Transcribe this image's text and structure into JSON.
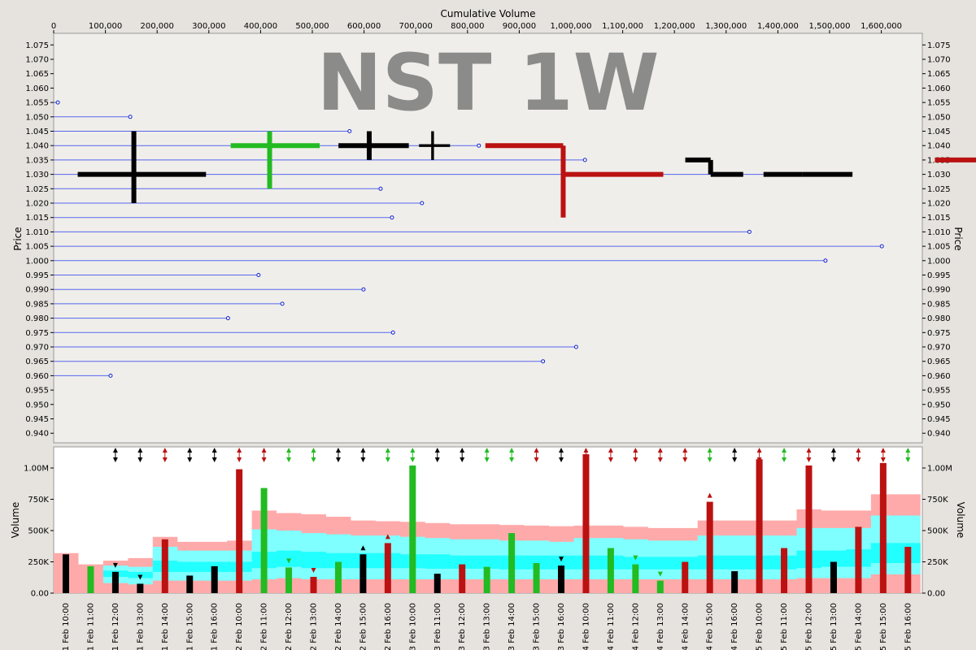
{
  "chart_data": {
    "type": "price-volume",
    "watermark": "NST 1W",
    "top_axis_label": "Cumulative Volume",
    "price_axis_label": "Price",
    "volume_axis_label": "Volume",
    "cum_volume_ticks": [
      "0",
      "100,000",
      "200,000",
      "300,000",
      "400,000",
      "500,000",
      "600,000",
      "700,000",
      "800,000",
      "900,000",
      "1,000,000",
      "1,100,000",
      "1,200,000",
      "1,300,000",
      "1,400,000",
      "1,500,000",
      "1,600,000"
    ],
    "price_ticks": [
      "1.075",
      "1.070",
      "1.065",
      "1.060",
      "1.055",
      "1.050",
      "1.045",
      "1.040",
      "1.035",
      "1.030",
      "1.025",
      "1.020",
      "1.015",
      "1.010",
      "1.005",
      "1.000",
      "0.995",
      "0.990",
      "0.985",
      "0.980",
      "0.975",
      "0.970",
      "0.965",
      "0.960",
      "0.955",
      "0.950",
      "0.945",
      "0.940"
    ],
    "volume_ticks": [
      "1.00M",
      "750K",
      "500K",
      "250K",
      "0.00"
    ],
    "colors": {
      "up": "#22bb22",
      "down": "#bb1111",
      "neutral": "#000000",
      "level": "#5566ee",
      "band_outer": "#ffaaaa",
      "band_mid": "#7fffff",
      "band_inner": "#22ffff"
    },
    "price_levels": [
      {
        "price": 1.055,
        "cum_end": 8000
      },
      {
        "price": 1.05,
        "cum_end": 148000
      },
      {
        "price": 1.045,
        "cum_end": 572000
      },
      {
        "price": 1.04,
        "cum_end": 822000
      },
      {
        "price": 1.035,
        "cum_end": 1027000
      },
      {
        "price": 1.03,
        "cum_end": 1423000
      },
      {
        "price": 1.025,
        "cum_end": 632000
      },
      {
        "price": 1.02,
        "cum_end": 712000
      },
      {
        "price": 1.015,
        "cum_end": 654000
      },
      {
        "price": 1.01,
        "cum_end": 1345000
      },
      {
        "price": 1.005,
        "cum_end": 1601000
      },
      {
        "price": 1.0,
        "cum_end": 1492000
      },
      {
        "price": 0.995,
        "cum_end": 396000
      },
      {
        "price": 0.99,
        "cum_end": 599000
      },
      {
        "price": 0.985,
        "cum_end": 442000
      },
      {
        "price": 0.98,
        "cum_end": 337000
      },
      {
        "price": 0.975,
        "cum_end": 656000
      },
      {
        "price": 0.97,
        "cum_end": 1010000
      },
      {
        "price": 0.965,
        "cum_end": 946000
      },
      {
        "price": 0.96,
        "cum_end": 110000
      }
    ],
    "bars": [
      {
        "time": "11 Feb 10:00",
        "volume": 310000,
        "open": 1.03,
        "high": 1.045,
        "low": 1.02,
        "close": 1.03,
        "dir": "neutral"
      },
      {
        "time": "11 Feb 11:00",
        "volume": 215000,
        "open": 1.04,
        "high": 1.045,
        "low": 1.025,
        "close": 1.04,
        "dir": "up"
      },
      {
        "time": "11 Feb 12:00",
        "volume": 170000,
        "open": 1.04,
        "high": 1.045,
        "low": 1.035,
        "close": 1.04,
        "dir": "neutral",
        "marker": "down"
      },
      {
        "time": "11 Feb 13:00",
        "volume": 75000,
        "open": 1.04,
        "high": 1.045,
        "low": 1.035,
        "close": 1.04,
        "dir": "neutral",
        "marker": "down"
      },
      {
        "time": "11 Feb 14:00",
        "volume": 430000,
        "open": 1.04,
        "high": 1.04,
        "low": 1.015,
        "close": 1.03,
        "dir": "down"
      },
      {
        "time": "11 Feb 15:00",
        "volume": 140000,
        "open": 1.035,
        "high": 1.035,
        "low": 1.03,
        "close": 1.03,
        "dir": "neutral"
      },
      {
        "time": "11 Feb 16:00",
        "volume": 215000,
        "open": 1.03,
        "high": 1.03,
        "low": 1.03,
        "close": 1.03,
        "dir": "neutral"
      },
      {
        "time": "12 Feb 10:00",
        "volume": 990000,
        "open": 1.035,
        "high": 1.035,
        "low": 0.995,
        "close": 0.995,
        "dir": "down"
      },
      {
        "time": "12 Feb 11:00",
        "volume": 840000,
        "open": 1.0,
        "high": 1.005,
        "low": 0.99,
        "close": 1.0,
        "dir": "up"
      },
      {
        "time": "12 Feb 12:00",
        "volume": 205000,
        "open": 1.005,
        "high": 1.01,
        "low": 0.995,
        "close": 1.005,
        "dir": "up",
        "marker": "down"
      },
      {
        "time": "12 Feb 13:00",
        "volume": 130000,
        "open": 1.01,
        "high": 1.01,
        "low": 1.0,
        "close": 1.0,
        "dir": "down",
        "marker": "down"
      },
      {
        "time": "12 Feb 14:00",
        "volume": 250000,
        "open": 1.01,
        "high": 1.01,
        "low": 1.0,
        "close": 1.01,
        "dir": "up"
      },
      {
        "time": "12 Feb 15:00",
        "volume": 310000,
        "open": 1.01,
        "high": 1.01,
        "low": 1.0,
        "close": 1.01,
        "dir": "neutral",
        "marker": "up"
      },
      {
        "time": "12 Feb 16:00",
        "volume": 400000,
        "open": 1.01,
        "high": 1.01,
        "low": 1.005,
        "close": 1.005,
        "dir": "down",
        "marker": "up"
      },
      {
        "time": "13 Feb 10:00",
        "volume": 1020000,
        "open": 1.03,
        "high": 1.045,
        "low": 1.02,
        "close": 1.03,
        "dir": "up"
      },
      {
        "time": "13 Feb 11:00",
        "volume": 155000,
        "open": 1.03,
        "high": 1.035,
        "low": 1.025,
        "close": 1.03,
        "dir": "neutral"
      },
      {
        "time": "13 Feb 12:00",
        "volume": 230000,
        "open": 1.03,
        "high": 1.03,
        "low": 1.02,
        "close": 1.025,
        "dir": "down"
      },
      {
        "time": "13 Feb 13:00",
        "volume": 210000,
        "open": 1.03,
        "high": 1.035,
        "low": 1.02,
        "close": 1.035,
        "dir": "up"
      },
      {
        "time": "13 Feb 14:00",
        "volume": 480000,
        "open": 1.04,
        "high": 1.055,
        "low": 1.035,
        "close": 1.035,
        "dir": "up"
      },
      {
        "time": "13 Feb 15:00",
        "volume": 240000,
        "open": 1.045,
        "high": 1.045,
        "low": 1.035,
        "close": 1.045,
        "dir": "up"
      },
      {
        "time": "13 Feb 16:00",
        "volume": 220000,
        "open": 1.045,
        "high": 1.045,
        "low": 1.045,
        "close": 1.045,
        "dir": "neutral",
        "marker": "down"
      },
      {
        "time": "14 Feb 10:00",
        "volume": 1110000,
        "open": 1.035,
        "high": 1.035,
        "low": 1.0,
        "close": 1.005,
        "dir": "down"
      },
      {
        "time": "14 Feb 11:00",
        "volume": 360000,
        "open": 1.005,
        "high": 1.025,
        "low": 1.005,
        "close": 1.01,
        "dir": "up"
      },
      {
        "time": "14 Feb 12:00",
        "volume": 230000,
        "open": 1.015,
        "high": 1.025,
        "low": 1.01,
        "close": 1.015,
        "dir": "up",
        "marker": "down"
      },
      {
        "time": "14 Feb 13:00",
        "volume": 100000,
        "open": 1.02,
        "high": 1.025,
        "low": 1.015,
        "close": 1.02,
        "dir": "up",
        "marker": "down"
      },
      {
        "time": "14 Feb 14:00",
        "volume": 250000,
        "open": 1.03,
        "high": 1.03,
        "low": 1.01,
        "close": 1.01,
        "dir": "down"
      },
      {
        "time": "14 Feb 15:00",
        "volume": 730000,
        "open": 1.015,
        "high": 1.015,
        "low": 1.005,
        "close": 1.005,
        "dir": "down",
        "marker": "up"
      },
      {
        "time": "14 Feb 16:00",
        "volume": 175000,
        "open": 1.005,
        "high": 1.005,
        "low": 1.005,
        "close": 1.005,
        "dir": "neutral"
      },
      {
        "time": "15 Feb 10:00",
        "volume": 1070000,
        "open": 1.0,
        "high": 1.0,
        "low": 0.985,
        "close": 0.99,
        "dir": "down"
      },
      {
        "time": "15 Feb 11:00",
        "volume": 360000,
        "open": 0.995,
        "high": 0.995,
        "low": 0.985,
        "close": 0.985,
        "dir": "down"
      },
      {
        "time": "15 Feb 12:00",
        "volume": 1020000,
        "open": 0.99,
        "high": 0.99,
        "low": 0.965,
        "close": 0.975,
        "dir": "down"
      },
      {
        "time": "15 Feb 13:00",
        "volume": 250000,
        "open": 0.975,
        "high": 0.975,
        "low": 0.97,
        "close": 0.975,
        "dir": "neutral"
      },
      {
        "time": "15 Feb 14:00",
        "volume": 530000,
        "open": 0.975,
        "high": 0.975,
        "low": 0.965,
        "close": 0.97,
        "dir": "down"
      },
      {
        "time": "15 Feb 15:00",
        "volume": 1040000,
        "open": 0.975,
        "high": 0.975,
        "low": 0.96,
        "close": 0.97,
        "dir": "down"
      },
      {
        "time": "15 Feb 16:00",
        "volume": 370000,
        "open": 0.97,
        "high": 0.97,
        "low": 0.965,
        "close": 0.965,
        "dir": "down"
      }
    ],
    "top_signals": [
      {
        "time": "11 Feb 12:00",
        "dir": "neutral"
      },
      {
        "time": "11 Feb 13:00",
        "dir": "neutral"
      },
      {
        "time": "11 Feb 14:00",
        "dir": "down"
      },
      {
        "time": "11 Feb 15:00",
        "dir": "neutral"
      },
      {
        "time": "11 Feb 16:00",
        "dir": "neutral"
      },
      {
        "time": "12 Feb 10:00",
        "dir": "down"
      },
      {
        "time": "12 Feb 11:00",
        "dir": "down"
      },
      {
        "time": "12 Feb 12:00",
        "dir": "up"
      },
      {
        "time": "12 Feb 13:00",
        "dir": "up"
      },
      {
        "time": "12 Feb 14:00",
        "dir": "neutral"
      },
      {
        "time": "12 Feb 15:00",
        "dir": "neutral"
      },
      {
        "time": "12 Feb 16:00",
        "dir": "up"
      },
      {
        "time": "13 Feb 10:00",
        "dir": "up"
      },
      {
        "time": "13 Feb 11:00",
        "dir": "neutral"
      },
      {
        "time": "13 Feb 12:00",
        "dir": "neutral"
      },
      {
        "time": "13 Feb 13:00",
        "dir": "up"
      },
      {
        "time": "13 Feb 14:00",
        "dir": "up"
      },
      {
        "time": "13 Feb 15:00",
        "dir": "down"
      },
      {
        "time": "13 Feb 16:00",
        "dir": "neutral"
      },
      {
        "time": "14 Feb 10:00",
        "dir": "down"
      },
      {
        "time": "14 Feb 11:00",
        "dir": "down"
      },
      {
        "time": "14 Feb 12:00",
        "dir": "down"
      },
      {
        "time": "14 Feb 13:00",
        "dir": "down"
      },
      {
        "time": "14 Feb 14:00",
        "dir": "down"
      },
      {
        "time": "14 Feb 15:00",
        "dir": "up"
      },
      {
        "time": "14 Feb 16:00",
        "dir": "neutral"
      },
      {
        "time": "15 Feb 10:00",
        "dir": "down"
      },
      {
        "time": "15 Feb 11:00",
        "dir": "up"
      },
      {
        "time": "15 Feb 12:00",
        "dir": "down"
      },
      {
        "time": "15 Feb 13:00",
        "dir": "neutral"
      },
      {
        "time": "15 Feb 14:00",
        "dir": "down"
      },
      {
        "time": "15 Feb 15:00",
        "dir": "down"
      },
      {
        "time": "15 Feb 16:00",
        "dir": "up"
      }
    ],
    "bands": {
      "outer": [
        320000,
        230000,
        260000,
        280000,
        450000,
        410000,
        410000,
        420000,
        660000,
        640000,
        630000,
        610000,
        580000,
        575000,
        570000,
        560000,
        550000,
        550000,
        545000,
        540000,
        535000,
        540000,
        540000,
        530000,
        520000,
        520000,
        580000,
        580000,
        580000,
        580000,
        670000,
        660000,
        660000,
        790000,
        790000
      ],
      "mid_top": [
        0,
        0,
        220000,
        210000,
        370000,
        340000,
        340000,
        340000,
        510000,
        500000,
        480000,
        470000,
        460000,
        460000,
        450000,
        440000,
        430000,
        430000,
        420000,
        420000,
        410000,
        440000,
        440000,
        430000,
        420000,
        420000,
        460000,
        460000,
        460000,
        460000,
        520000,
        520000,
        520000,
        620000,
        620000
      ],
      "inner_top": [
        0,
        0,
        180000,
        170000,
        260000,
        250000,
        250000,
        250000,
        330000,
        340000,
        330000,
        320000,
        320000,
        320000,
        310000,
        310000,
        300000,
        300000,
        300000,
        300000,
        300000,
        300000,
        300000,
        290000,
        290000,
        290000,
        300000,
        300000,
        300000,
        300000,
        340000,
        340000,
        350000,
        400000,
        400000
      ],
      "inner_bot": [
        0,
        0,
        130000,
        120000,
        170000,
        170000,
        170000,
        170000,
        200000,
        210000,
        200000,
        200000,
        200000,
        200000,
        200000,
        195000,
        195000,
        195000,
        190000,
        190000,
        190000,
        190000,
        190000,
        190000,
        190000,
        190000,
        190000,
        190000,
        190000,
        190000,
        200000,
        210000,
        210000,
        240000,
        240000
      ],
      "mid_bot": [
        0,
        0,
        80000,
        70000,
        100000,
        100000,
        100000,
        100000,
        110000,
        120000,
        110000,
        110000,
        110000,
        110000,
        110000,
        110000,
        110000,
        110000,
        110000,
        110000,
        110000,
        110000,
        110000,
        110000,
        110000,
        110000,
        110000,
        110000,
        110000,
        110000,
        120000,
        120000,
        120000,
        150000,
        150000
      ]
    }
  }
}
